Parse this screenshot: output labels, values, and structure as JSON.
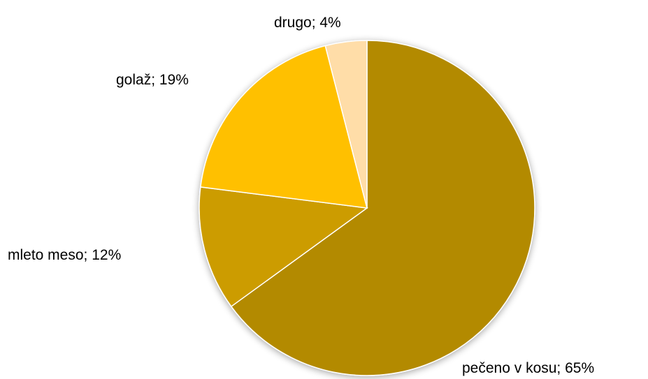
{
  "chart_data": {
    "type": "pie",
    "title": "",
    "start_angle_deg": 0,
    "direction": "clockwise",
    "slices": [
      {
        "label": "pečeno v kosu",
        "value": 65,
        "display": "pečeno v kosu; 65%",
        "color": "#B38A00"
      },
      {
        "label": "mleto meso",
        "value": 12,
        "display": "mleto meso; 12%",
        "color": "#CC9C00"
      },
      {
        "label": "golaž",
        "value": 19,
        "display": "golaž; 19%",
        "color": "#FFC000"
      },
      {
        "label": "drugo",
        "value": 4,
        "display": "drugo; 4%",
        "color": "#FFDDA8"
      }
    ]
  }
}
